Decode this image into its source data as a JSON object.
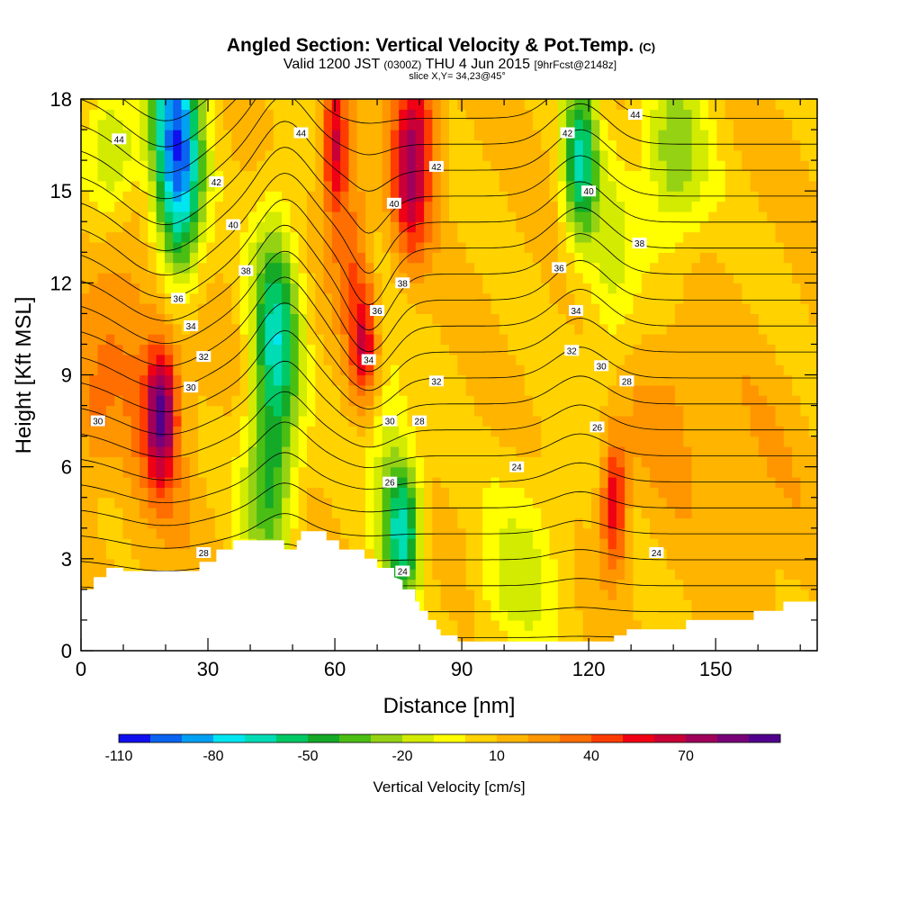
{
  "title": {
    "main": "Angled Section: Vertical Velocity & Pot.Temp.",
    "main_units": "(C)",
    "valid_prefix": "Valid 1200 JST",
    "valid_utc": "(0300Z)",
    "valid_date": "THU 4 Jun 2015",
    "forecast": "[9hrFcst@2148z]",
    "slice": "slice X,Y= 34,23@45°"
  },
  "chart_data": {
    "type": "heatmap",
    "xlabel": "Distance [nm]",
    "ylabel": "Height [Kft MSL]",
    "xlim": [
      0,
      174
    ],
    "ylim": [
      0,
      18
    ],
    "x_ticks": [
      "0",
      "30",
      "60",
      "90",
      "120",
      "150"
    ],
    "y_ticks": [
      "0",
      "3",
      "6",
      "9",
      "12",
      "15",
      "18"
    ],
    "colorbar": {
      "title": "Vertical Velocity [cm/s]",
      "levels": [
        -110,
        -100,
        -90,
        -80,
        -70,
        -60,
        -50,
        -40,
        -30,
        -20,
        -10,
        0,
        10,
        20,
        30,
        40,
        50,
        60,
        70,
        80,
        90
      ],
      "tick_labels": [
        "-110",
        "-80",
        "-50",
        "-20",
        "10",
        "40",
        "70"
      ],
      "colors": [
        "#1010ee",
        "#0a64f0",
        "#00a0f2",
        "#00e6f0",
        "#00dcb4",
        "#00c864",
        "#14aa28",
        "#4bbe14",
        "#96d214",
        "#d2eb00",
        "#ffff00",
        "#ffd200",
        "#ffb400",
        "#ff9600",
        "#ff6e00",
        "#ff3c00",
        "#f00014",
        "#c80037",
        "#a0005a",
        "#780078",
        "#50008c"
      ]
    },
    "pot_temp_contour_labels": [
      {
        "label": "44",
        "x": 9,
        "y": 16.7
      },
      {
        "label": "44",
        "x": 52,
        "y": 16.9
      },
      {
        "label": "44",
        "x": 131,
        "y": 17.5
      },
      {
        "label": "42",
        "x": 32,
        "y": 15.3
      },
      {
        "label": "42",
        "x": 84,
        "y": 15.8
      },
      {
        "label": "42",
        "x": 115,
        "y": 16.9
      },
      {
        "label": "40",
        "x": 36,
        "y": 13.9
      },
      {
        "label": "40",
        "x": 74,
        "y": 14.6
      },
      {
        "label": "40",
        "x": 120,
        "y": 15.0
      },
      {
        "label": "38",
        "x": 39,
        "y": 12.4
      },
      {
        "label": "38",
        "x": 76,
        "y": 12.0
      },
      {
        "label": "38",
        "x": 132,
        "y": 13.3
      },
      {
        "label": "36",
        "x": 23,
        "y": 11.5
      },
      {
        "label": "36",
        "x": 70,
        "y": 11.1
      },
      {
        "label": "36",
        "x": 113,
        "y": 12.5
      },
      {
        "label": "34",
        "x": 26,
        "y": 10.6
      },
      {
        "label": "34",
        "x": 68,
        "y": 9.5
      },
      {
        "label": "34",
        "x": 117,
        "y": 11.1
      },
      {
        "label": "32",
        "x": 29,
        "y": 9.6
      },
      {
        "label": "32",
        "x": 84,
        "y": 8.8
      },
      {
        "label": "32",
        "x": 116,
        "y": 9.8
      },
      {
        "label": "30",
        "x": 4,
        "y": 7.5
      },
      {
        "label": "30",
        "x": 26,
        "y": 8.6
      },
      {
        "label": "30",
        "x": 73,
        "y": 7.5
      },
      {
        "label": "30",
        "x": 123,
        "y": 9.3
      },
      {
        "label": "28",
        "x": 29,
        "y": 3.2
      },
      {
        "label": "28",
        "x": 80,
        "y": 7.5
      },
      {
        "label": "28",
        "x": 129,
        "y": 8.8
      },
      {
        "label": "26",
        "x": 73,
        "y": 5.5
      },
      {
        "label": "26",
        "x": 122,
        "y": 7.3
      },
      {
        "label": "24",
        "x": 103,
        "y": 6.0
      },
      {
        "label": "24",
        "x": 76,
        "y": 2.6
      },
      {
        "label": "24",
        "x": 136,
        "y": 3.2
      }
    ],
    "terrain_height_kft": [
      [
        0,
        2.0
      ],
      [
        3,
        2.0
      ],
      [
        3,
        2.4
      ],
      [
        6,
        2.4
      ],
      [
        6,
        2.7
      ],
      [
        10,
        2.7
      ],
      [
        10,
        2.6
      ],
      [
        28,
        2.6
      ],
      [
        28,
        2.9
      ],
      [
        32,
        2.9
      ],
      [
        32,
        3.3
      ],
      [
        36,
        3.3
      ],
      [
        36,
        3.6
      ],
      [
        48,
        3.6
      ],
      [
        48,
        3.3
      ],
      [
        51,
        3.3
      ],
      [
        51,
        3.6
      ],
      [
        52,
        3.6
      ],
      [
        52,
        3.9
      ],
      [
        58,
        3.9
      ],
      [
        58,
        3.6
      ],
      [
        61,
        3.6
      ],
      [
        61,
        3.3
      ],
      [
        67,
        3.3
      ],
      [
        67,
        3.0
      ],
      [
        70,
        3.0
      ],
      [
        70,
        2.7
      ],
      [
        74,
        2.7
      ],
      [
        74,
        2.4
      ],
      [
        76,
        2.3
      ],
      [
        76,
        2.0
      ],
      [
        79,
        2.0
      ],
      [
        79,
        1.6
      ],
      [
        80,
        1.6
      ],
      [
        80,
        1.3
      ],
      [
        82,
        1.3
      ],
      [
        82,
        1.0
      ],
      [
        84,
        1.0
      ],
      [
        84,
        0.7
      ],
      [
        85,
        0.7
      ],
      [
        85,
        0.5
      ],
      [
        89,
        0.5
      ],
      [
        89,
        0.3
      ],
      [
        126,
        0.3
      ],
      [
        126,
        0.5
      ],
      [
        129,
        0.5
      ],
      [
        129,
        0.7
      ],
      [
        143,
        0.7
      ],
      [
        143,
        1.0
      ],
      [
        159,
        1.0
      ],
      [
        159,
        1.3
      ],
      [
        166,
        1.3
      ],
      [
        166,
        1.6
      ],
      [
        174,
        1.6
      ]
    ]
  }
}
